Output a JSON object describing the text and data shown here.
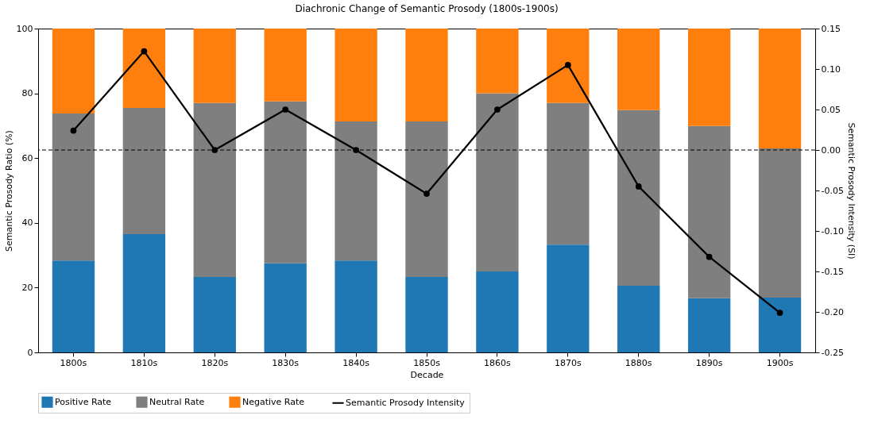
{
  "chart_data": {
    "type": "bar",
    "title": "Diachronic Change of Semantic Prosody (1800s-1900s)",
    "xlabel": "Decade",
    "ylabel": "Semantic Prosody Ratio (%)",
    "y2label": "Semantic Prosody Intensity (SI)",
    "categories": [
      "1800s",
      "1810s",
      "1820s",
      "1830s",
      "1840s",
      "1850s",
      "1860s",
      "1870s",
      "1880s",
      "1890s",
      "1900s"
    ],
    "stacked": true,
    "series": [
      {
        "name": "Positive Rate",
        "color": "#1f77b4",
        "values": [
          28.4,
          36.5,
          23.3,
          27.5,
          28.4,
          23.3,
          25,
          33.3,
          20.6,
          16.7,
          16.9
        ]
      },
      {
        "name": "Neutral Rate",
        "color": "#7f7f7f",
        "values": [
          45.4,
          39,
          53.7,
          50,
          42.9,
          48,
          55,
          43.7,
          54.2,
          53.2,
          46.1
        ]
      },
      {
        "name": "Negative Rate",
        "color": "#ff7f0e",
        "values": [
          26.2,
          24.5,
          23,
          22.5,
          28.7,
          28.7,
          20,
          23,
          25.2,
          30.1,
          37
        ]
      },
      {
        "name": "Semantic Prosody Intensity",
        "type": "line",
        "axis": "y2",
        "color": "#000000",
        "marker": "circle",
        "values": [
          0.024,
          0.122,
          0,
          0.05,
          0,
          -0.054,
          0.05,
          0.105,
          -0.045,
          -0.132,
          -0.201
        ]
      }
    ],
    "ylim": [
      0,
      100
    ],
    "yticks": [
      0,
      20,
      40,
      60,
      80,
      100
    ],
    "y2lim": [
      -0.25,
      0.15
    ],
    "y2ticks": [
      {
        "value": -0.25,
        "label": "-0.25"
      },
      {
        "value": -0.2,
        "label": "-0.20"
      },
      {
        "value": -0.15,
        "label": "-0.15"
      },
      {
        "value": -0.1,
        "label": "-0.10"
      },
      {
        "value": -0.05,
        "label": "-0.05"
      },
      {
        "value": 0,
        "label": "0.00"
      },
      {
        "value": 0.05,
        "label": "0.05"
      },
      {
        "value": 0.1,
        "label": "0.10"
      },
      {
        "value": 0.15,
        "label": "0.15"
      }
    ],
    "ref_lines": [
      {
        "axis": "y2",
        "value": 0,
        "color": "#000000",
        "line_style": "dashed"
      }
    ],
    "legend": "bottom",
    "grid": false
  }
}
